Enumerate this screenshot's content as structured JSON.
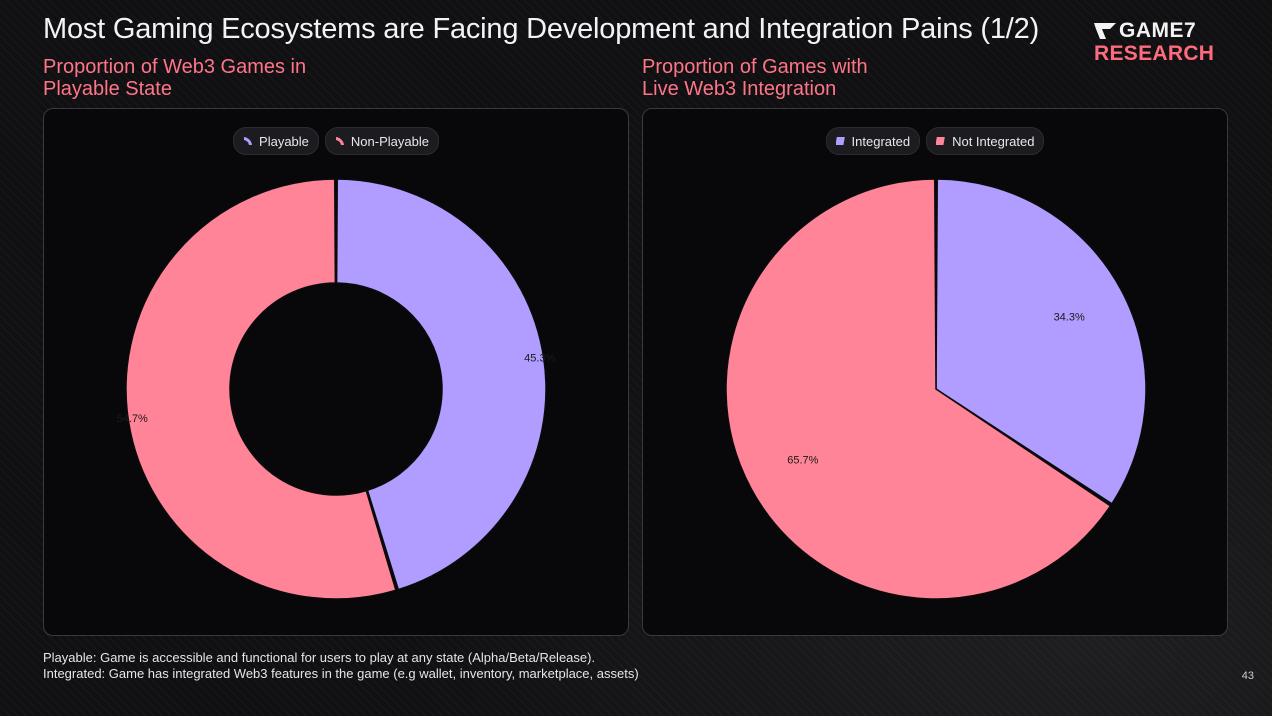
{
  "title": "Most Gaming Ecosystems are Facing Development and Integration Pains (1/2)",
  "logo": {
    "top_text": "GAME7",
    "bottom_text": "RESEARCH"
  },
  "colors": {
    "purple": "#b19cff",
    "pink": "#ff8497",
    "accent": "#ff7588"
  },
  "chart_data": [
    {
      "type": "pie",
      "variant": "donut",
      "title_line1": "Proportion of Web3 Games in",
      "title_line2": "Playable State",
      "legend_placement": "top-center",
      "slices": [
        {
          "name": "Playable",
          "value": 45.3,
          "label": "45.3%",
          "color": "#b19cff"
        },
        {
          "name": "Non-Playable",
          "value": 54.7,
          "label": "54.7%",
          "color": "#ff8497"
        }
      ]
    },
    {
      "type": "pie",
      "variant": "pie",
      "title_line1": "Proportion of Games with",
      "title_line2": "Live Web3 Integration",
      "legend_placement": "top-center",
      "slices": [
        {
          "name": "Integrated",
          "value": 34.3,
          "label": "34.3%",
          "color": "#b19cff"
        },
        {
          "name": "Not Integrated",
          "value": 65.7,
          "label": "65.7%",
          "color": "#ff8497"
        }
      ]
    }
  ],
  "footnotes": [
    "Playable: Game is accessible and functional for users to play at any state (Alpha/Beta/Release).",
    "Integrated: Game has integrated Web3 features in the game (e.g wallet, inventory, marketplace, assets)"
  ],
  "page_number": "43"
}
